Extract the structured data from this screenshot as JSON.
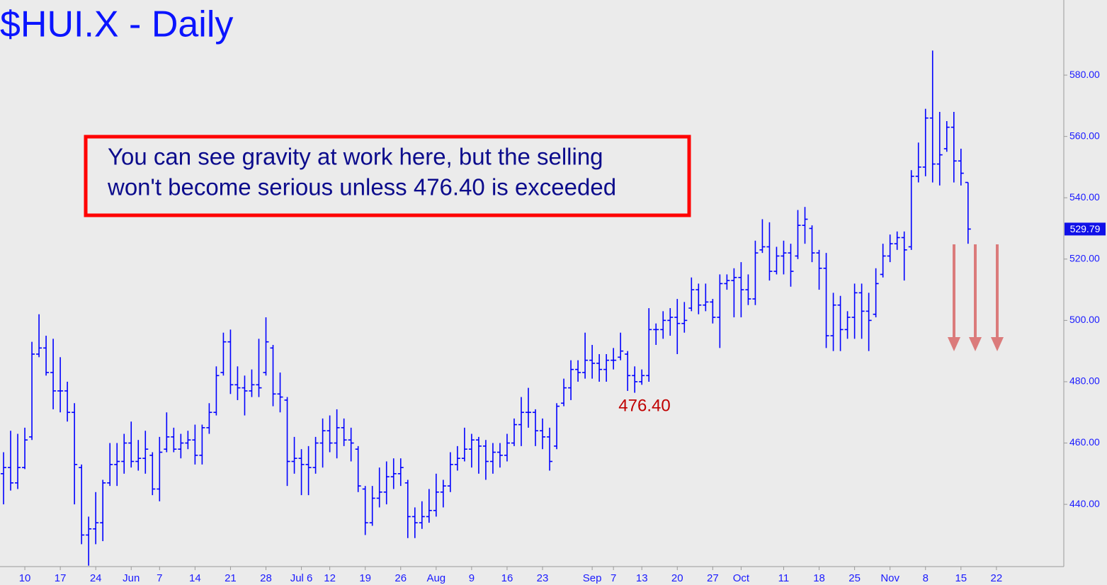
{
  "chart_data": {
    "type": "ohlc",
    "title": "$HUI.X - Daily",
    "annotation_lines": [
      "You can see gravity at work here, but the selling",
      "won't become serious unless 476.40 is exceeded"
    ],
    "level_label": "476.40",
    "color": "#0000ff",
    "ylim": [
      419.7,
      604.5
    ],
    "yticks": [
      {
        "value": 440,
        "label": "440.00"
      },
      {
        "value": 460,
        "label": "460.00"
      },
      {
        "value": 480,
        "label": "480.00"
      },
      {
        "value": 500,
        "label": "500.00"
      },
      {
        "value": 520,
        "label": "520.00"
      },
      {
        "value": 540,
        "label": "540.00"
      },
      {
        "value": 560,
        "label": "560.00"
      },
      {
        "value": 580,
        "label": "580.00"
      }
    ],
    "categories": [
      null,
      null,
      null,
      "10",
      null,
      null,
      null,
      null,
      "17",
      null,
      null,
      null,
      null,
      "24",
      null,
      null,
      null,
      null,
      "Jun",
      null,
      null,
      null,
      "7",
      null,
      null,
      null,
      null,
      "14",
      null,
      null,
      null,
      null,
      "21",
      null,
      null,
      null,
      null,
      "28",
      null,
      null,
      null,
      null,
      "Jul 6",
      null,
      null,
      null,
      "12",
      null,
      null,
      null,
      null,
      "19",
      null,
      null,
      null,
      null,
      "26",
      null,
      null,
      null,
      null,
      "Aug",
      null,
      null,
      null,
      null,
      "9",
      null,
      null,
      null,
      null,
      "16",
      null,
      null,
      null,
      null,
      "23",
      null,
      null,
      null,
      null,
      null,
      null,
      "Sep",
      null,
      null,
      "7",
      null,
      null,
      null,
      "13",
      null,
      null,
      null,
      null,
      "20",
      null,
      null,
      null,
      null,
      "27",
      null,
      null,
      null,
      "Oct",
      null,
      null,
      null,
      null,
      null,
      "11",
      null,
      null,
      null,
      null,
      "18",
      null,
      null,
      null,
      null,
      "25",
      null,
      null,
      null,
      null,
      "Nov",
      null,
      null,
      null,
      null,
      "8",
      null,
      null,
      null,
      null,
      "15",
      null,
      null,
      null,
      null,
      "22",
      null,
      null,
      null,
      null,
      null,
      null,
      null,
      null,
      null
    ],
    "open": [
      450,
      452,
      447,
      452,
      462,
      489,
      491,
      483,
      477,
      477,
      470,
      452,
      430,
      432,
      434,
      447,
      453,
      454,
      460,
      454,
      455,
      456,
      445,
      458,
      462,
      458,
      460,
      461,
      456,
      465,
      470,
      483,
      493,
      479,
      478,
      477,
      479,
      483,
      491,
      476,
      474,
      454,
      455,
      453,
      452,
      460,
      464,
      460,
      465,
      461,
      458,
      445,
      434,
      442,
      444,
      449,
      450,
      447,
      436,
      434,
      436,
      438,
      444,
      446,
      453,
      455,
      458,
      461,
      459,
      454,
      457,
      456,
      460,
      466,
      470,
      470,
      464,
      462,
      459,
      473,
      478,
      484,
      483,
      487,
      486,
      484,
      487,
      488,
      489,
      482,
      480,
      482,
      497,
      497,
      500,
      501,
      499,
      504,
      510,
      505,
      506,
      501,
      512,
      513,
      514,
      510,
      507,
      523,
      524,
      516,
      521,
      522,
      521,
      531,
      530,
      522,
      517,
      495,
      505,
      497,
      501,
      509,
      503,
      502,
      515,
      521,
      525,
      527,
      524,
      547,
      550,
      566,
      551,
      556,
      563,
      552,
      545,
      null,
      null,
      null,
      null,
      null,
      null,
      null,
      null,
      null,
      null,
      null,
      null,
      null
    ],
    "high": [
      457,
      464,
      463,
      465,
      493,
      502,
      495,
      494,
      488,
      480,
      473,
      453,
      436,
      444,
      448,
      460,
      460,
      463,
      467,
      461,
      464,
      457,
      462,
      470,
      465,
      463,
      464,
      466,
      466,
      473,
      485,
      496,
      497,
      485,
      482,
      484,
      494,
      501,
      492,
      483,
      475,
      462,
      458,
      459,
      462,
      468,
      469,
      471,
      468,
      465,
      459,
      446,
      446,
      452,
      454,
      455,
      455,
      448,
      439,
      441,
      445,
      450,
      448,
      457,
      459,
      465,
      463,
      462,
      461,
      460,
      460,
      463,
      468,
      475,
      478,
      471,
      468,
      465,
      473,
      481,
      487,
      487,
      496,
      492,
      489,
      489,
      491,
      496,
      490,
      485,
      484,
      504,
      499,
      503,
      504,
      507,
      506,
      514,
      512,
      512,
      507,
      515,
      515,
      517,
      519,
      515,
      526,
      533,
      532,
      524,
      526,
      525,
      536,
      537,
      531,
      523,
      522,
      509,
      508,
      503,
      512,
      512,
      509,
      517,
      525,
      528,
      529,
      529,
      549,
      558,
      569,
      588,
      568,
      565,
      568,
      556,
      545,
      null,
      null,
      null,
      null,
      null,
      null,
      null,
      null,
      null,
      null,
      null,
      null,
      null
    ],
    "low": [
      440,
      444.5,
      445,
      451.5,
      461,
      488,
      482,
      471,
      470,
      467,
      440,
      427,
      420,
      427,
      428,
      446,
      446,
      450,
      452,
      451,
      450,
      443,
      441,
      457,
      457,
      455,
      458,
      453,
      453,
      463,
      469,
      482,
      476,
      474,
      469,
      475,
      475,
      482,
      472,
      470,
      446,
      450,
      443,
      443,
      450,
      452,
      457,
      455,
      459,
      454,
      444,
      430,
      433,
      439,
      440,
      445,
      446,
      429,
      429,
      432,
      434,
      436,
      439,
      444,
      451,
      454,
      452,
      450,
      448,
      450,
      452,
      454,
      459,
      459,
      465,
      459,
      458,
      451,
      458,
      472,
      474,
      480,
      481,
      481,
      480,
      480,
      484,
      487,
      477,
      476.4,
      479,
      480,
      492,
      494,
      495,
      489,
      496,
      503,
      502,
      503,
      499,
      491,
      510,
      501,
      501,
      505,
      505,
      522,
      513,
      515,
      515,
      511,
      520,
      525,
      519,
      510,
      491,
      490,
      490,
      494,
      494,
      494,
      490,
      501,
      514,
      519,
      523,
      513,
      523,
      545,
      547,
      545,
      544,
      555,
      545,
      544,
      525,
      null,
      null,
      null,
      null,
      null,
      null,
      null,
      null,
      null,
      null,
      null,
      null,
      null
    ],
    "close": [
      452,
      447,
      452,
      461,
      489,
      491,
      483,
      477,
      477,
      470,
      453,
      430,
      432,
      434,
      447,
      453,
      454,
      460,
      454,
      455,
      458,
      445,
      457,
      462,
      458,
      460,
      461,
      456,
      465,
      470,
      482,
      493,
      479,
      478,
      477,
      479,
      478,
      493,
      476,
      475,
      454,
      455,
      453,
      452,
      460,
      464,
      460,
      465,
      461,
      460,
      446,
      434,
      442,
      444,
      449,
      450,
      452,
      436,
      434,
      436,
      438,
      444,
      446,
      453,
      455,
      458,
      461,
      459,
      454,
      457,
      456,
      460,
      466,
      470,
      470,
      464,
      462,
      454,
      472,
      478,
      484,
      483,
      487,
      486,
      484,
      487,
      487,
      490,
      482,
      480,
      482,
      497,
      497,
      500,
      501,
      499,
      500,
      510,
      505,
      506,
      501,
      512,
      513,
      514,
      510,
      507,
      522,
      524,
      516,
      521,
      522,
      516,
      531,
      533,
      522,
      517,
      495,
      505,
      497,
      501,
      509,
      503,
      500,
      512,
      521,
      525,
      527,
      523,
      547,
      550,
      566,
      551,
      554,
      563,
      552,
      548,
      529.79,
      null,
      null,
      null,
      null,
      null,
      null,
      null,
      null,
      null,
      null,
      null,
      null,
      null
    ]
  }
}
